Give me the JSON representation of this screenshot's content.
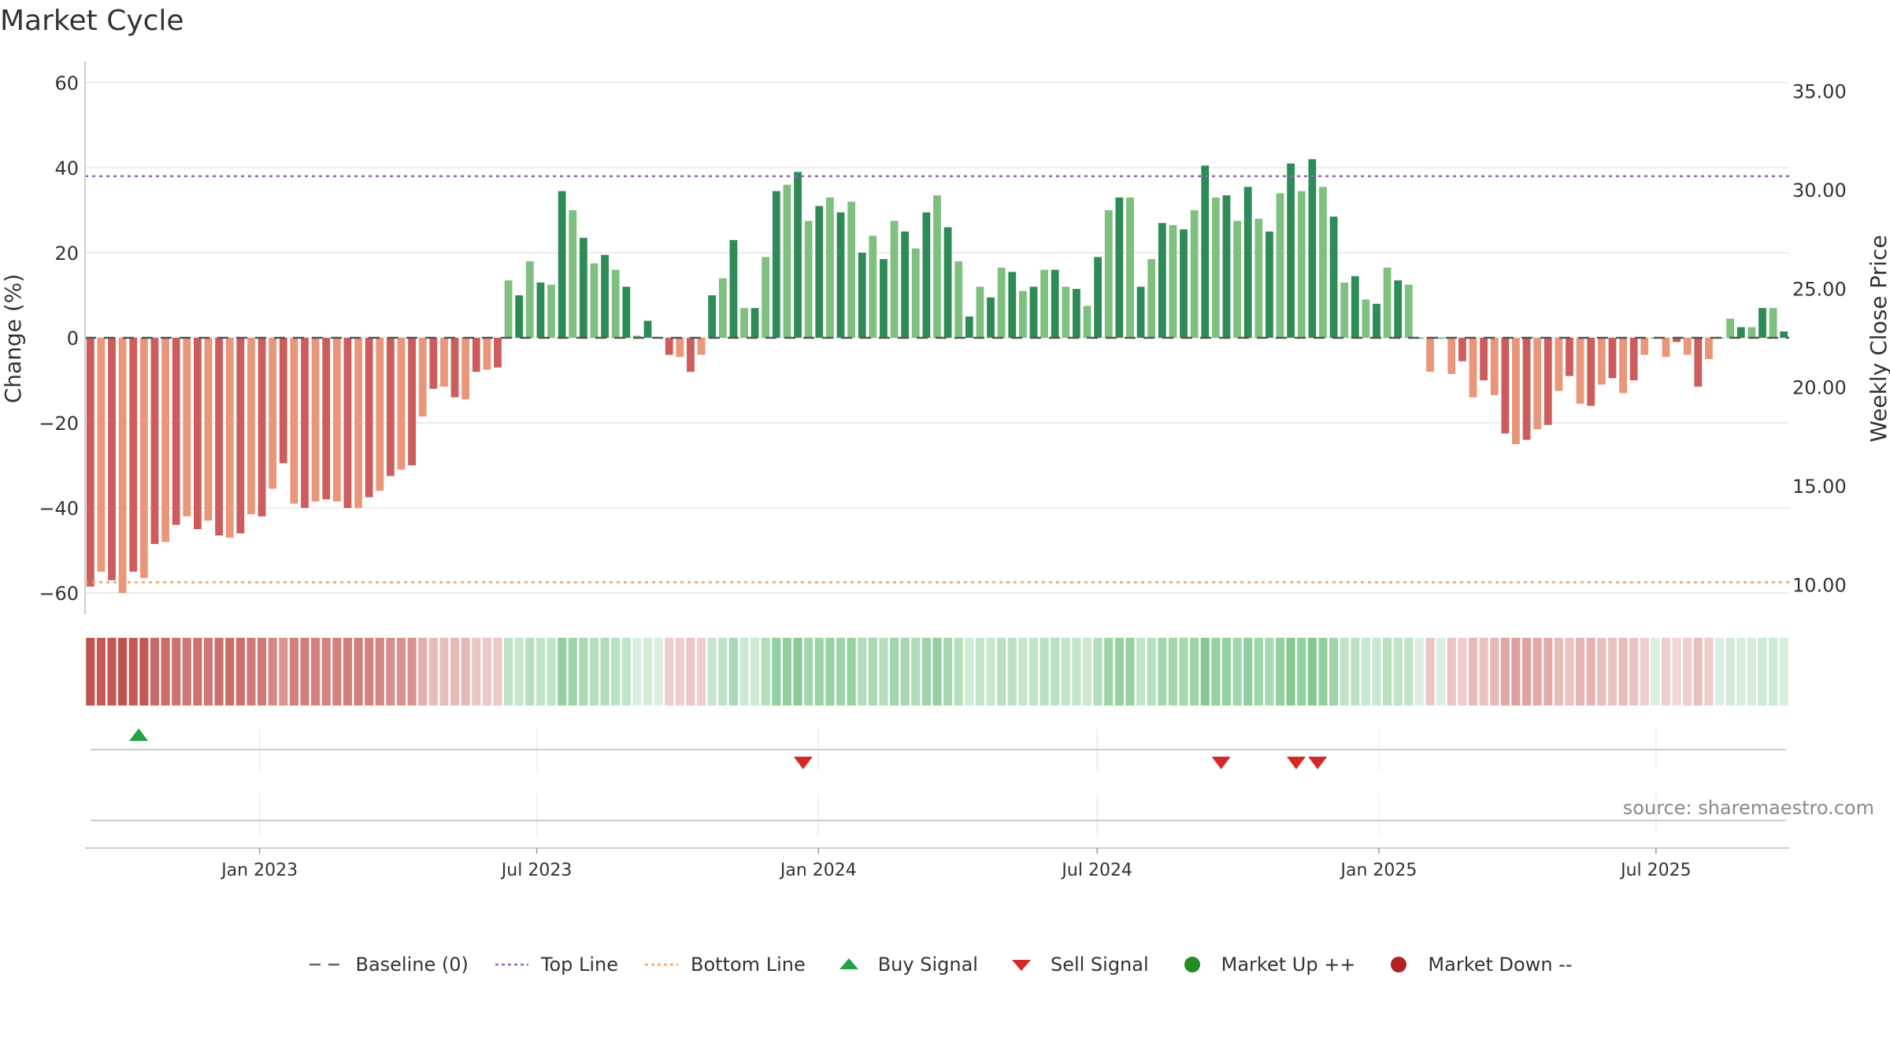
{
  "title": "Market Cycle",
  "source": "source: sharemaestro.com",
  "colors": {
    "up_strong": "#2e8b57",
    "up_light": "#7fbf7f",
    "down_strong": "#cd5c5c",
    "down_light": "#e9967a",
    "top_line": "#9467bd",
    "bottom_line": "#f4a261",
    "baseline": "#555555",
    "buy": "#22a34a",
    "sell": "#d62728",
    "market_up": "#228b22",
    "market_down": "#b22222",
    "grid": "#e6e6e6"
  },
  "legend": [
    {
      "label": "Baseline (0)",
      "swatch": "dash",
      "color": "#666666"
    },
    {
      "label": "Top Line",
      "swatch": "dot",
      "color": "#9467bd"
    },
    {
      "label": "Bottom Line",
      "swatch": "dot",
      "color": "#f4a261"
    },
    {
      "label": "Buy Signal",
      "swatch": "triangle-up",
      "color": "#22a34a"
    },
    {
      "label": "Sell Signal",
      "swatch": "triangle-down",
      "color": "#d62728"
    },
    {
      "label": "Market Up ++",
      "swatch": "circle",
      "color": "#228b22"
    },
    {
      "label": "Market Down --",
      "swatch": "circle",
      "color": "#b22222"
    }
  ],
  "chart_data": {
    "type": "bar",
    "title": "Market Cycle",
    "ylabel": "Change (%)",
    "y2label": "Weekly Close Price",
    "ylim": [
      -65,
      65
    ],
    "yticks": [
      60,
      40,
      20,
      0,
      -20,
      -40,
      -60
    ],
    "yticklabels": [
      "60",
      "40",
      "20",
      "0",
      "−20",
      "−40",
      "−60"
    ],
    "y2lim": [
      8.5,
      36.5
    ],
    "y2ticks": [
      35,
      30,
      25,
      20,
      15,
      10
    ],
    "y2ticklabels": [
      "35.00",
      "30.00",
      "25.00",
      "20.00",
      "15.00",
      "10.00"
    ],
    "top_line": 38,
    "bottom_line": -57.5,
    "baseline": 0,
    "x_range": [
      "2022-09-09",
      "2025-09-26"
    ],
    "x_ticks": [
      {
        "date": "2023-01-01",
        "label": "Jan 2023"
      },
      {
        "date": "2023-07-01",
        "label": "Jul 2023"
      },
      {
        "date": "2024-01-01",
        "label": "Jan 2024"
      },
      {
        "date": "2024-07-01",
        "label": "Jul 2024"
      },
      {
        "date": "2025-01-01",
        "label": "Jan 2025"
      },
      {
        "date": "2025-07-01",
        "label": "Jul 2025"
      }
    ],
    "series": [
      {
        "start_week": "2022-09-09",
        "values": [
          -58.5,
          -55,
          -57,
          -60,
          -55,
          -56.5,
          -48.5,
          -48,
          -44,
          -42,
          -45,
          -43,
          -46.5,
          -47,
          -46,
          -41.5,
          -42,
          -35.5,
          -29.5,
          -39,
          -40,
          -38.5,
          -38,
          -38.5,
          -40,
          -40,
          -37.5,
          -36,
          -32.5,
          -31,
          -30,
          -18.5,
          -12,
          -11.5,
          -14,
          -14.5,
          -8,
          -7.5,
          -7,
          13.5,
          10,
          18,
          13,
          12.5,
          34.5,
          30,
          23.5,
          17.5,
          19.5,
          16,
          12,
          0.5,
          4,
          0,
          -4,
          -4.5,
          -8,
          -4,
          10,
          14,
          23,
          7,
          7,
          19,
          34.5,
          36,
          39,
          27.5,
          31,
          33,
          29.5,
          32,
          20,
          24,
          18.5,
          27.5,
          25,
          21,
          29.5,
          33.5,
          26,
          18,
          5,
          12,
          9.5,
          16.5,
          15.5,
          11,
          12,
          16,
          16,
          12,
          11.5,
          7.5,
          19,
          30,
          33,
          33,
          12,
          18.5,
          27,
          26.5,
          25.5,
          30,
          40.5,
          33,
          33.5,
          27.5,
          35.5,
          28,
          25,
          34,
          41,
          34.5,
          42,
          35.5,
          28.5,
          13,
          14.5,
          9,
          8,
          16.5,
          13.5,
          12.5,
          0,
          -8,
          0,
          -8.5,
          -5.5,
          -14,
          -10,
          -13.5,
          -22.5,
          -25,
          -24,
          -21.5,
          -20.5,
          -12.5,
          -9,
          -15.5,
          -16,
          -11,
          -9.5,
          -13,
          -10,
          -4,
          0,
          -4.5,
          -1,
          -4,
          -11.5,
          -5,
          0,
          4.5,
          2.5,
          2.5,
          7,
          7,
          1.5
        ]
      }
    ],
    "buy_signals": [
      "2022-10-14"
    ],
    "sell_signals": [
      "2023-12-22",
      "2024-09-20",
      "2024-11-08",
      "2024-11-22"
    ]
  }
}
